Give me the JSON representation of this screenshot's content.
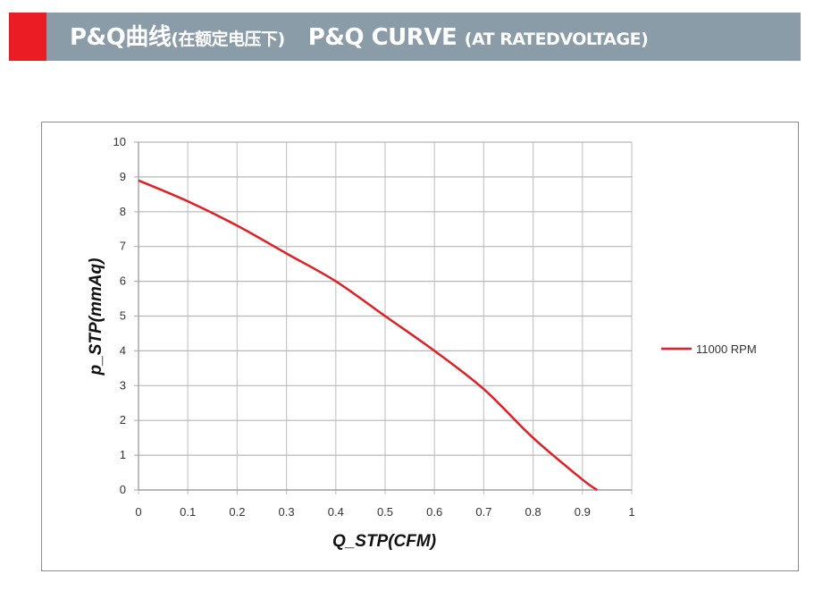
{
  "header": {
    "title_cn": "P&Q曲线",
    "subtitle_cn": "(在额定电压下)",
    "title_en": "P&Q CURVE",
    "subtitle_en": "(AT RATEDVOLTAGE)",
    "accent": "#ec1c24",
    "bar_color": "#8a9ca8"
  },
  "chart_data": {
    "type": "line",
    "xlabel": "Q_STP(CFM)",
    "ylabel": "p_STP(mmAq)",
    "xlim": [
      0,
      1
    ],
    "ylim": [
      0,
      10
    ],
    "xticks": [
      "0",
      "0.1",
      "0.2",
      "0.3",
      "0.4",
      "0.5",
      "0.6",
      "0.7",
      "0.8",
      "0.9",
      "1"
    ],
    "yticks": [
      "0",
      "1",
      "2",
      "3",
      "4",
      "5",
      "6",
      "7",
      "8",
      "9",
      "10"
    ],
    "grid": true,
    "legend": "right",
    "series": [
      {
        "name": "11000 RPM",
        "color": "#e31e24",
        "x": [
          0,
          0.1,
          0.2,
          0.3,
          0.4,
          0.5,
          0.6,
          0.7,
          0.8,
          0.9,
          0.93
        ],
        "y": [
          8.9,
          8.3,
          7.6,
          6.8,
          6.0,
          5.0,
          4.0,
          2.9,
          1.5,
          0.3,
          0
        ]
      }
    ]
  }
}
